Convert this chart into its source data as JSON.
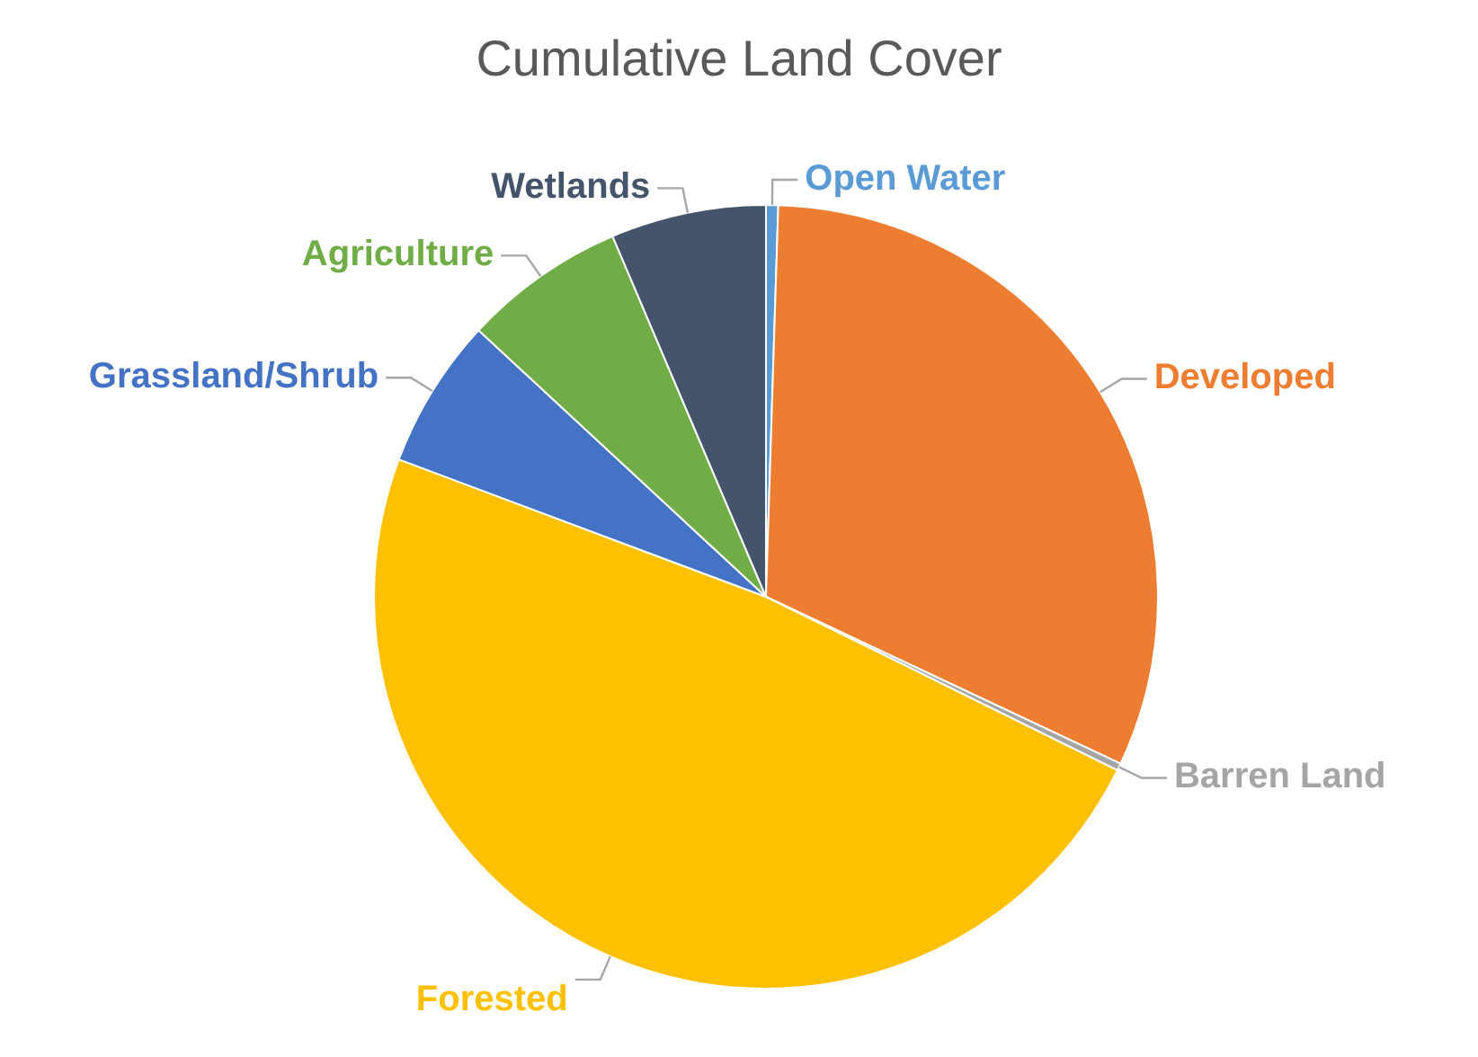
{
  "chart_data": {
    "type": "pie",
    "title": "Cumulative Land Cover",
    "categories": [
      "Open Water",
      "Developed",
      "Barren Land",
      "Forested",
      "Grassland/Shrub",
      "Agriculture",
      "Wetlands"
    ],
    "values": [
      0.5,
      31.5,
      0.3,
      48.4,
      6.2,
      6.7,
      6.4
    ],
    "colors": [
      "#5b9bd5",
      "#ed7d31",
      "#a5a5a5",
      "#ffc000",
      "#4472c4",
      "#70ad47",
      "#44546a"
    ],
    "legend": false
  }
}
